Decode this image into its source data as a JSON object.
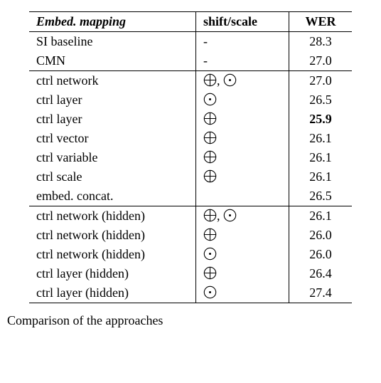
{
  "table": {
    "header": {
      "mapping": "Embed. mapping",
      "shift": "shift/scale",
      "wer": "WER"
    },
    "groups": [
      [
        {
          "mapping": "SI baseline",
          "shift": "-",
          "ops": [],
          "wer": "28.3"
        },
        {
          "mapping": "CMN",
          "shift": "-",
          "ops": [],
          "wer": "27.0"
        }
      ],
      [
        {
          "mapping": "ctrl network",
          "ops": [
            "oplus",
            "odot"
          ],
          "sep": ", ",
          "wer": "27.0"
        },
        {
          "mapping": "ctrl layer",
          "ops": [
            "odot"
          ],
          "wer": "26.5"
        },
        {
          "mapping": "ctrl layer",
          "ops": [
            "oplus"
          ],
          "wer": "25.9",
          "bold": true
        },
        {
          "mapping": "ctrl vector",
          "ops": [
            "oplus"
          ],
          "wer": "26.1"
        },
        {
          "mapping": "ctrl variable",
          "ops": [
            "oplus"
          ],
          "wer": "26.1"
        },
        {
          "mapping": "ctrl scale",
          "ops": [
            "oplus"
          ],
          "wer": "26.1"
        },
        {
          "mapping": "embed. concat.",
          "ops": [],
          "wer": "26.5"
        }
      ],
      [
        {
          "mapping": "ctrl network (hidden)",
          "ops": [
            "oplus",
            "odot"
          ],
          "sep": ", ",
          "wer": "26.1"
        },
        {
          "mapping": "ctrl network (hidden)",
          "ops": [
            "oplus"
          ],
          "wer": "26.0"
        },
        {
          "mapping": "ctrl network (hidden)",
          "ops": [
            "odot"
          ],
          "wer": "26.0"
        },
        {
          "mapping": "ctrl layer (hidden)",
          "ops": [
            "oplus"
          ],
          "wer": "26.4"
        },
        {
          "mapping": "ctrl layer (hidden)",
          "ops": [
            "odot"
          ],
          "wer": "27.4"
        }
      ]
    ]
  },
  "ops": {
    "oplus": {
      "name": "circled-plus"
    },
    "odot": {
      "name": "circled-dot"
    }
  },
  "caption": "Comparison of the approaches"
}
